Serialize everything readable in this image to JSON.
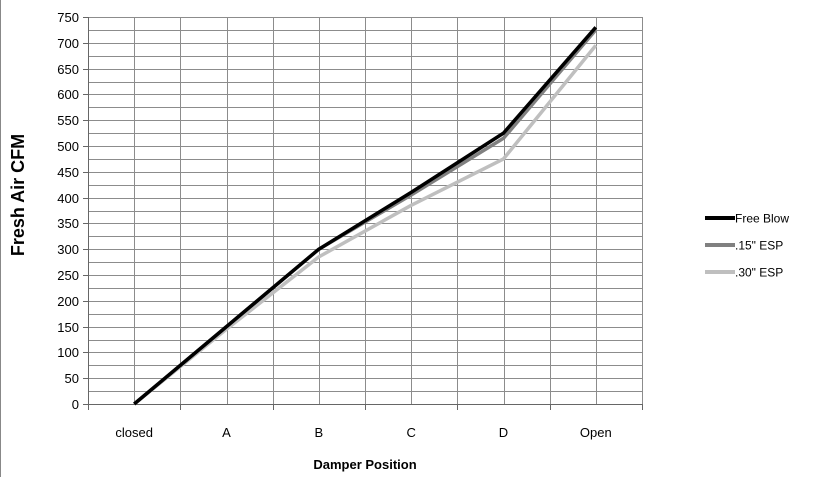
{
  "chart_data": {
    "type": "line",
    "title": "",
    "xlabel": "Damper Position",
    "ylabel": "Fresh Air CFM",
    "categories": [
      "closed",
      "A",
      "B",
      "C",
      "D",
      "Open"
    ],
    "ylim": [
      0,
      750
    ],
    "yticks": [
      0,
      50,
      100,
      150,
      200,
      250,
      300,
      350,
      400,
      450,
      500,
      550,
      600,
      650,
      700,
      750
    ],
    "grid": true,
    "legend_position": "right",
    "series": [
      {
        "name": "Free Blow",
        "color": "#000000",
        "values": [
          0,
          150,
          300,
          410,
          525,
          730
        ]
      },
      {
        "name": ".15\" ESP",
        "color": "#808080",
        "values": [
          0,
          150,
          300,
          405,
          515,
          725
        ]
      },
      {
        "name": ".30\" ESP",
        "color": "#bfbfbf",
        "values": [
          0,
          145,
          285,
          385,
          475,
          695
        ]
      }
    ]
  }
}
